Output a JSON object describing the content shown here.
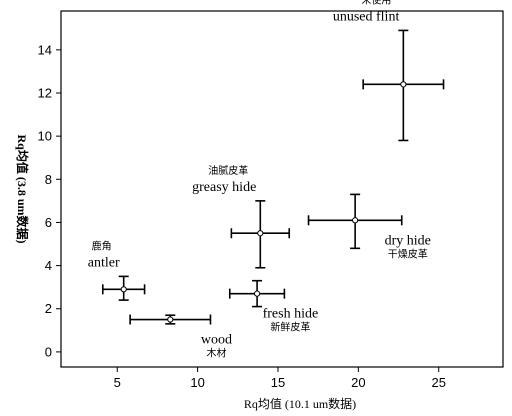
{
  "chart_data": {
    "type": "scatter",
    "title": "",
    "xlabel": "Rq均值 (10.1 um数据)",
    "ylabel": "Rq均值 (3.8 um数据)",
    "xlim": [
      1.5,
      29
    ],
    "ylim": [
      -0.7,
      15.8
    ],
    "xticks": [
      5,
      10,
      15,
      20,
      25
    ],
    "yticks": [
      0,
      2,
      4,
      6,
      8,
      10,
      12,
      14
    ],
    "grid": false,
    "legend": "none",
    "points": [
      {
        "name_en": "unused flint",
        "name_zh": "未使用",
        "x": 22.8,
        "y": 12.4,
        "x_err": [
          20.3,
          25.3
        ],
        "y_err": [
          9.8,
          14.9
        ],
        "label_pos": "above-left"
      },
      {
        "name_en": "greasy hide",
        "name_zh": "油腻皮革",
        "x": 13.9,
        "y": 5.5,
        "x_err": [
          12.1,
          15.7
        ],
        "y_err": [
          3.9,
          7.0
        ],
        "label_pos": "above-left"
      },
      {
        "name_en": "dry hide",
        "name_zh": "干燥皮革",
        "x": 19.8,
        "y": 6.1,
        "x_err": [
          16.9,
          22.7
        ],
        "y_err": [
          4.8,
          7.3
        ],
        "label_pos": "below-right"
      },
      {
        "name_en": "antler",
        "name_zh": "鹿角",
        "x": 5.4,
        "y": 2.9,
        "x_err": [
          4.1,
          6.7
        ],
        "y_err": [
          2.4,
          3.5
        ],
        "label_pos": "above-left"
      },
      {
        "name_en": "fresh hide",
        "name_zh": "新鲜皮革",
        "x": 13.7,
        "y": 2.7,
        "x_err": [
          12.0,
          15.4
        ],
        "y_err": [
          2.1,
          3.3
        ],
        "label_pos": "below-right"
      },
      {
        "name_en": "wood",
        "name_zh": "木材",
        "x": 8.3,
        "y": 1.5,
        "x_err": [
          5.8,
          10.8
        ],
        "y_err": [
          1.3,
          1.7
        ],
        "label_pos": "below-right"
      }
    ]
  }
}
